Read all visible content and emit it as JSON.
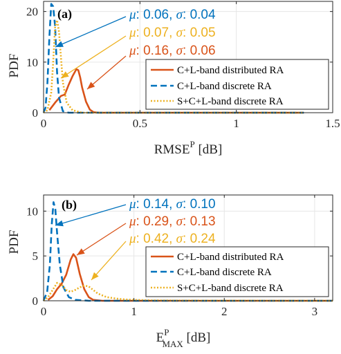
{
  "chart_data": [
    {
      "panel_label": "(a)",
      "type": "line",
      "xlabel": "RMSE",
      "xlabel_sup": "P",
      "xlabel_unit": " [dB]",
      "ylabel": "PDF",
      "xlim": [
        0,
        1.5
      ],
      "ylim": [
        0,
        22
      ],
      "xticks": [
        0,
        0.5,
        1,
        1.5
      ],
      "xtick_labels": [
        "0",
        "0.5",
        "1",
        "1.5"
      ],
      "yticks": [
        0,
        10,
        20
      ],
      "ytick_labels": [
        "0",
        "10",
        "20"
      ],
      "grid": true,
      "legend_position": "lower-right",
      "series": [
        {
          "name": "C+L-band distributed RA",
          "color": "#D95319",
          "style": "solid",
          "x": [
            0.03,
            0.06,
            0.09,
            0.11,
            0.13,
            0.15,
            0.17,
            0.18,
            0.19,
            0.2,
            0.22,
            0.24,
            0.26,
            0.29,
            0.35,
            1.35
          ],
          "y": [
            0.5,
            2.0,
            3.3,
            3.6,
            5.5,
            7.2,
            8.6,
            8.4,
            7.0,
            5.0,
            2.2,
            0.6,
            0.1,
            0,
            0,
            0
          ]
        },
        {
          "name": "C+L-band discrete RA",
          "color": "#0072BD",
          "style": "dashed",
          "x": [
            0.0,
            0.01,
            0.02,
            0.03,
            0.04,
            0.05,
            0.06,
            0.07,
            0.08,
            0.1,
            0.13,
            0.2,
            1.35
          ],
          "y": [
            0,
            1.0,
            6.0,
            15.0,
            21.5,
            21.0,
            17.0,
            8.0,
            3.0,
            0.3,
            0,
            0,
            0
          ]
        },
        {
          "name": "S+C+L-band discrete RA",
          "color": "#EDB120",
          "style": "dotted",
          "x": [
            0.0,
            0.02,
            0.04,
            0.05,
            0.06,
            0.07,
            0.08,
            0.09,
            0.1,
            0.12,
            0.15,
            0.2,
            1.35
          ],
          "y": [
            0,
            0.5,
            4.0,
            10.0,
            17.0,
            18.3,
            16.0,
            11.0,
            6.0,
            2.0,
            0.5,
            0,
            0
          ]
        }
      ],
      "annotations": [
        {
          "mu": "0.06",
          "sigma": "0.04",
          "color": "#0072BD"
        },
        {
          "mu": "0.07",
          "sigma": "0.05",
          "color": "#EDB120"
        },
        {
          "mu": "0.16",
          "sigma": "0.06",
          "color": "#D95319"
        }
      ]
    },
    {
      "panel_label": "(b)",
      "type": "line",
      "xlabel": "E",
      "xlabel_sup": "P",
      "xlabel_sub": "MAX",
      "xlabel_unit": " [dB]",
      "ylabel": "PDF",
      "xlim": [
        0,
        3.2
      ],
      "ylim": [
        0,
        11.8
      ],
      "xticks": [
        0,
        1,
        2,
        3
      ],
      "xtick_labels": [
        "0",
        "1",
        "2",
        "3"
      ],
      "yticks": [
        0,
        5,
        10
      ],
      "ytick_labels": [
        "0",
        "5",
        "10"
      ],
      "grid": true,
      "legend_position": "lower-right",
      "series": [
        {
          "name": "C+L-band distributed RA",
          "color": "#D95319",
          "style": "solid",
          "x": [
            0.05,
            0.1,
            0.15,
            0.2,
            0.25,
            0.3,
            0.33,
            0.36,
            0.4,
            0.45,
            0.5,
            0.55,
            0.65,
            3.2
          ],
          "y": [
            0.1,
            0.5,
            1.3,
            1.9,
            2.9,
            4.6,
            5.2,
            4.8,
            3.0,
            1.3,
            0.4,
            0.1,
            0,
            0
          ]
        },
        {
          "name": "C+L-band discrete RA",
          "color": "#0072BD",
          "style": "dashed",
          "x": [
            0.0,
            0.04,
            0.07,
            0.09,
            0.11,
            0.13,
            0.15,
            0.18,
            0.22,
            0.28,
            0.35,
            0.5,
            3.2
          ],
          "y": [
            0,
            1.0,
            4.0,
            8.5,
            11.0,
            10.2,
            7.5,
            4.0,
            1.5,
            0.4,
            0.1,
            0,
            0
          ]
        },
        {
          "name": "S+C+L-band discrete RA",
          "color": "#EDB120",
          "style": "dotted",
          "x": [
            0.0,
            0.05,
            0.1,
            0.15,
            0.2,
            0.25,
            0.3,
            0.35,
            0.4,
            0.45,
            0.5,
            0.55,
            0.6,
            0.7,
            0.8,
            0.9,
            1.0,
            1.2,
            1.5,
            3.2
          ],
          "y": [
            0,
            0.4,
            1.2,
            2.0,
            1.8,
            1.2,
            1.0,
            1.2,
            1.5,
            1.7,
            1.6,
            1.2,
            0.8,
            0.4,
            0.25,
            0.15,
            0.1,
            0.05,
            0.02,
            0
          ]
        }
      ],
      "annotations": [
        {
          "mu": "0.14",
          "sigma": "0.10",
          "color": "#0072BD"
        },
        {
          "mu": "0.29",
          "sigma": "0.13",
          "color": "#D95319"
        },
        {
          "mu": "0.42",
          "sigma": "0.24",
          "color": "#EDB120"
        }
      ]
    }
  ]
}
